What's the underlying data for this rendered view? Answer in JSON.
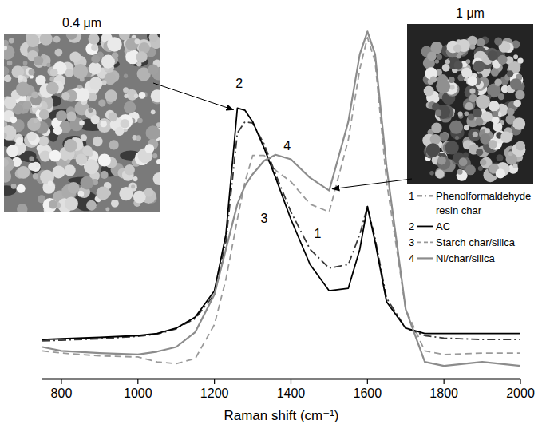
{
  "chart_data": {
    "type": "line",
    "x_label": "Raman shift (cm⁻¹)",
    "x": [
      750,
      800,
      900,
      1000,
      1050,
      1100,
      1150,
      1200,
      1230,
      1260,
      1280,
      1300,
      1330,
      1360,
      1400,
      1450,
      1500,
      1550,
      1580,
      1600,
      1620,
      1650,
      1700,
      1750,
      1800,
      1900,
      2000
    ],
    "xlim": [
      750,
      2000
    ],
    "xticks": [
      800,
      1000,
      1200,
      1400,
      1600,
      1800,
      2000
    ],
    "ylim": [
      0,
      100
    ],
    "tick_labels": "x",
    "legend": "right",
    "series": [
      {
        "name": "Phenolformaldehyde resin char",
        "label": "1",
        "color": "#3a3a3a",
        "line_style": "dashdot",
        "values": [
          10.8,
          11.0,
          11.4,
          12.1,
          12.7,
          14.2,
          17.1,
          23.9,
          38.7,
          69.3,
          72.5,
          72.1,
          66.2,
          57.7,
          47.1,
          36.6,
          31.3,
          32.3,
          40.8,
          48.6,
          39.7,
          22.8,
          14.4,
          12.3,
          11.6,
          11.2,
          11.2
        ]
      },
      {
        "name": "AC",
        "label": "2",
        "color": "#000000",
        "line_style": "solid",
        "values": [
          11.2,
          11.4,
          11.8,
          12.3,
          12.9,
          14.4,
          17.5,
          24.9,
          40.8,
          76.3,
          75.7,
          72.5,
          65.1,
          56.7,
          45.0,
          32.3,
          24.9,
          25.6,
          36.6,
          48.6,
          38.7,
          21.8,
          14.4,
          12.9,
          12.9,
          12.9,
          12.9
        ]
      },
      {
        "name": "Starch char/silica",
        "label": "3",
        "color": "#9a9a9a",
        "line_style": "dashed",
        "values": [
          8.0,
          7.4,
          6.6,
          6.3,
          4.9,
          4.4,
          5.9,
          15.4,
          28.1,
          45.0,
          55.6,
          63.0,
          63.0,
          58.8,
          55.6,
          49.3,
          47.1,
          67.4,
          87.3,
          96.2,
          89.4,
          55.6,
          19.7,
          8.0,
          7.0,
          7.4,
          7.4
        ]
      },
      {
        "name": "Ni/char/silica",
        "label": "4",
        "color": "#8c8c8c",
        "line_style": "solid",
        "values": [
          9.1,
          8.0,
          7.4,
          7.0,
          7.8,
          9.1,
          13.3,
          23.9,
          36.6,
          49.3,
          54.5,
          57.7,
          61.5,
          63.2,
          61.9,
          56.7,
          53.1,
          72.5,
          91.5,
          97.9,
          91.5,
          59.8,
          19.7,
          4.9,
          3.8,
          4.9,
          3.8
        ]
      }
    ],
    "annotations": [
      {
        "text": "2",
        "x": 1265,
        "y": 82.0
      },
      {
        "text": "4",
        "x": 1390,
        "y": 64.5
      },
      {
        "text": "1",
        "x": 1470,
        "y": 39.8
      },
      {
        "text": "3",
        "x": 1330,
        "y": 44.0
      }
    ],
    "insets": [
      {
        "label": "0.4 μm"
      },
      {
        "label": "1 μm"
      }
    ]
  }
}
